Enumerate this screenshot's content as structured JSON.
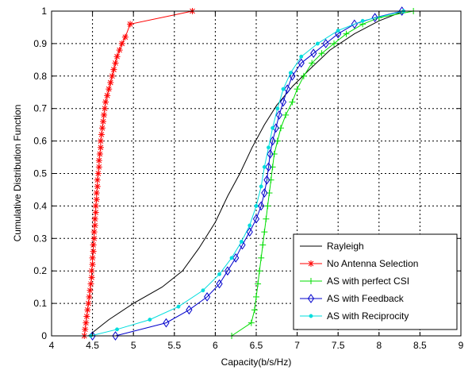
{
  "chart_data": {
    "type": "line",
    "xlabel": "Capacity(b/s/Hz)",
    "ylabel": "Cumulative Distribution Function",
    "xlim": [
      4,
      9
    ],
    "ylim": [
      0,
      1
    ],
    "xticks": [
      "4",
      "4.5",
      "5",
      "5.5",
      "6",
      "6.5",
      "7",
      "7.5",
      "8",
      "8.5",
      "9"
    ],
    "yticks": [
      "0",
      "0.1",
      "0.2",
      "0.3",
      "0.4",
      "0.5",
      "0.6",
      "0.7",
      "0.8",
      "0.9",
      "1"
    ],
    "grid": true,
    "legend_position": "bottom-right",
    "series": [
      {
        "name": "Rayleigh",
        "color": "#000000",
        "marker": "none",
        "points": [
          [
            4.45,
            0
          ],
          [
            4.7,
            0.05
          ],
          [
            5.0,
            0.1
          ],
          [
            5.35,
            0.15
          ],
          [
            5.6,
            0.2
          ],
          [
            5.8,
            0.27
          ],
          [
            6.0,
            0.35
          ],
          [
            6.15,
            0.43
          ],
          [
            6.3,
            0.5
          ],
          [
            6.45,
            0.58
          ],
          [
            6.6,
            0.65
          ],
          [
            6.75,
            0.71
          ],
          [
            6.95,
            0.77
          ],
          [
            7.15,
            0.82
          ],
          [
            7.4,
            0.88
          ],
          [
            7.7,
            0.93
          ],
          [
            8.0,
            0.97
          ],
          [
            8.3,
            1.0
          ]
        ]
      },
      {
        "name": "No Antenna Selection",
        "color": "#ff0000",
        "marker": "star",
        "points": [
          [
            4.4,
            0
          ],
          [
            4.41,
            0.02
          ],
          [
            4.42,
            0.04
          ],
          [
            4.43,
            0.06
          ],
          [
            4.44,
            0.08
          ],
          [
            4.45,
            0.1
          ],
          [
            4.46,
            0.12
          ],
          [
            4.47,
            0.14
          ],
          [
            4.48,
            0.16
          ],
          [
            4.49,
            0.18
          ],
          [
            4.49,
            0.2
          ],
          [
            4.5,
            0.22
          ],
          [
            4.5,
            0.24
          ],
          [
            4.51,
            0.26
          ],
          [
            4.51,
            0.28
          ],
          [
            4.52,
            0.3
          ],
          [
            4.52,
            0.32
          ],
          [
            4.53,
            0.34
          ],
          [
            4.53,
            0.36
          ],
          [
            4.54,
            0.38
          ],
          [
            4.54,
            0.4
          ],
          [
            4.55,
            0.42
          ],
          [
            4.55,
            0.44
          ],
          [
            4.56,
            0.46
          ],
          [
            4.56,
            0.48
          ],
          [
            4.57,
            0.5
          ],
          [
            4.58,
            0.52
          ],
          [
            4.58,
            0.54
          ],
          [
            4.59,
            0.56
          ],
          [
            4.6,
            0.58
          ],
          [
            4.6,
            0.6
          ],
          [
            4.61,
            0.62
          ],
          [
            4.62,
            0.64
          ],
          [
            4.63,
            0.66
          ],
          [
            4.64,
            0.68
          ],
          [
            4.65,
            0.7
          ],
          [
            4.66,
            0.72
          ],
          [
            4.68,
            0.74
          ],
          [
            4.7,
            0.76
          ],
          [
            4.72,
            0.78
          ],
          [
            4.74,
            0.8
          ],
          [
            4.76,
            0.82
          ],
          [
            4.78,
            0.84
          ],
          [
            4.8,
            0.86
          ],
          [
            4.83,
            0.88
          ],
          [
            4.86,
            0.9
          ],
          [
            4.9,
            0.92
          ],
          [
            4.96,
            0.96
          ],
          [
            5.72,
            1.0
          ]
        ]
      },
      {
        "name": "AS with perfect CSI",
        "color": "#00dd00",
        "marker": "plus",
        "points": [
          [
            6.2,
            0
          ],
          [
            6.44,
            0.04
          ],
          [
            6.48,
            0.08
          ],
          [
            6.5,
            0.12
          ],
          [
            6.52,
            0.16
          ],
          [
            6.54,
            0.2
          ],
          [
            6.56,
            0.24
          ],
          [
            6.58,
            0.28
          ],
          [
            6.6,
            0.32
          ],
          [
            6.62,
            0.36
          ],
          [
            6.64,
            0.4
          ],
          [
            6.66,
            0.44
          ],
          [
            6.68,
            0.48
          ],
          [
            6.7,
            0.52
          ],
          [
            6.72,
            0.56
          ],
          [
            6.76,
            0.6
          ],
          [
            6.8,
            0.64
          ],
          [
            6.86,
            0.68
          ],
          [
            6.94,
            0.72
          ],
          [
            7.0,
            0.76
          ],
          [
            7.08,
            0.8
          ],
          [
            7.18,
            0.84
          ],
          [
            7.3,
            0.87
          ],
          [
            7.45,
            0.9
          ],
          [
            7.6,
            0.93
          ],
          [
            7.8,
            0.96
          ],
          [
            8.0,
            0.98
          ],
          [
            8.42,
            1.0
          ]
        ]
      },
      {
        "name": "AS with Feedback",
        "color": "#0000cc",
        "marker": "diamond",
        "points": [
          [
            4.5,
            0
          ],
          [
            4.78,
            0
          ],
          [
            5.4,
            0.04
          ],
          [
            5.68,
            0.08
          ],
          [
            5.9,
            0.12
          ],
          [
            6.05,
            0.16
          ],
          [
            6.15,
            0.2
          ],
          [
            6.25,
            0.24
          ],
          [
            6.33,
            0.28
          ],
          [
            6.42,
            0.32
          ],
          [
            6.5,
            0.36
          ],
          [
            6.56,
            0.4
          ],
          [
            6.6,
            0.44
          ],
          [
            6.63,
            0.48
          ],
          [
            6.65,
            0.52
          ],
          [
            6.67,
            0.56
          ],
          [
            6.7,
            0.6
          ],
          [
            6.74,
            0.64
          ],
          [
            6.78,
            0.68
          ],
          [
            6.83,
            0.72
          ],
          [
            6.88,
            0.76
          ],
          [
            6.94,
            0.8
          ],
          [
            7.05,
            0.84
          ],
          [
            7.2,
            0.87
          ],
          [
            7.35,
            0.9
          ],
          [
            7.5,
            0.93
          ],
          [
            7.7,
            0.96
          ],
          [
            7.95,
            0.98
          ],
          [
            8.28,
            1.0
          ]
        ]
      },
      {
        "name": "AS with Reciprocity",
        "color": "#00dddd",
        "marker": "dot",
        "points": [
          [
            4.48,
            0
          ],
          [
            4.8,
            0.02
          ],
          [
            5.2,
            0.05
          ],
          [
            5.55,
            0.09
          ],
          [
            5.85,
            0.14
          ],
          [
            6.05,
            0.19
          ],
          [
            6.2,
            0.24
          ],
          [
            6.32,
            0.29
          ],
          [
            6.42,
            0.34
          ],
          [
            6.5,
            0.4
          ],
          [
            6.56,
            0.46
          ],
          [
            6.6,
            0.52
          ],
          [
            6.65,
            0.58
          ],
          [
            6.7,
            0.64
          ],
          [
            6.76,
            0.7
          ],
          [
            6.83,
            0.76
          ],
          [
            6.92,
            0.81
          ],
          [
            7.05,
            0.86
          ],
          [
            7.25,
            0.9
          ],
          [
            7.5,
            0.94
          ],
          [
            7.8,
            0.97
          ],
          [
            8.3,
            1.0
          ]
        ]
      }
    ]
  }
}
